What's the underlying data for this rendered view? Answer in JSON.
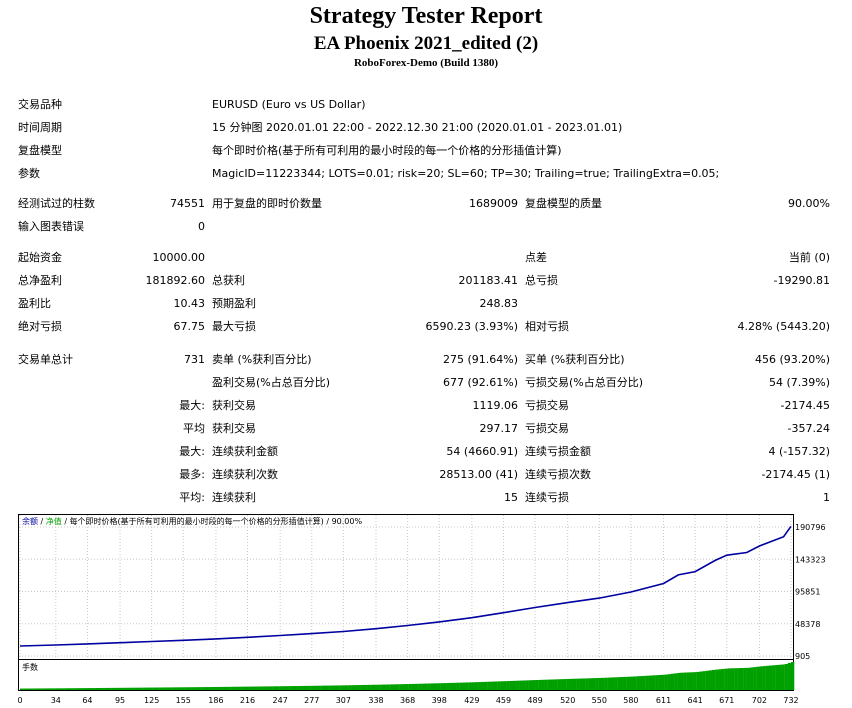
{
  "header": {
    "title": "Strategy Tester Report",
    "subtitle": "EA Phoenix 2021_edited (2)",
    "server": "RoboForex-Demo (Build 1380)"
  },
  "settings": {
    "symbol_label": "交易品种",
    "symbol_value": "EURUSD (Euro vs US Dollar)",
    "period_label": "时间周期",
    "period_value": "15 分钟图 2020.01.01 22:00 - 2022.12.30 21:00 (2020.01.01 - 2023.01.01)",
    "model_label": "复盘模型",
    "model_value": "每个即时价格(基于所有可利用的最小时段的每一个价格的分形插值计算)",
    "params_label": "参数",
    "params_value": "MagicID=11223344; LOTS=0.01; risk=20; SL=60; TP=30; Trailing=true; TrailingExtra=0.05;"
  },
  "stats": {
    "bars_label": "经测试过的柱数",
    "bars_value": "74551",
    "ticks_label": "用于复盘的即时价数量",
    "ticks_value": "1689009",
    "quality_label": "复盘模型的质量",
    "quality_value": "90.00%",
    "errors_label": "输入图表错误",
    "errors_value": "0",
    "deposit_label": "起始资金",
    "deposit_value": "10000.00",
    "spread_label": "点差",
    "spread_value": "当前 (0)",
    "net_label": "总净盈利",
    "net_value": "181892.60",
    "gross_profit_label": "总获利",
    "gross_profit_value": "201183.41",
    "gross_loss_label": "总亏损",
    "gross_loss_value": "-19290.81",
    "pf_label": "盈利比",
    "pf_value": "10.43",
    "expected_label": "预期盈利",
    "expected_value": "248.83",
    "abs_dd_label": "绝对亏损",
    "abs_dd_value": "67.75",
    "max_dd_label": "最大亏损",
    "max_dd_value": "6590.23 (3.93%)",
    "rel_dd_label": "相对亏损",
    "rel_dd_value": "4.28% (5443.20)",
    "trades_label": "交易单总计",
    "trades_value": "731",
    "short_label": "卖单 (%获利百分比)",
    "short_value": "275 (91.64%)",
    "long_label": "买单 (%获利百分比)",
    "long_value": "456 (93.20%)",
    "win_label": "盈利交易(%占总百分比)",
    "win_value": "677 (92.61%)",
    "loss_label": "亏损交易(%占总百分比)",
    "loss_value": "54 (7.39%)",
    "largest_prefix": "最大:",
    "largest_win_label": "获利交易",
    "largest_win_value": "1119.06",
    "largest_loss_label": "亏损交易",
    "largest_loss_value": "-2174.45",
    "avg_prefix": "平均",
    "avg_win_label": "获利交易",
    "avg_win_value": "297.17",
    "avg_loss_label": "亏损交易",
    "avg_loss_value": "-357.24",
    "maxcons_prefix": "最大:",
    "maxcons_win_label": "连续获利金额",
    "maxcons_win_value": "54 (4660.91)",
    "maxcons_loss_label": "连续亏损金额",
    "maxcons_loss_value": "4 (-157.32)",
    "maxamt_prefix": "最多:",
    "maxamt_win_label": "连续获利次数",
    "maxamt_win_value": "28513.00 (41)",
    "maxamt_loss_label": "连续亏损次数",
    "maxamt_loss_value": "-2174.45 (1)",
    "avgcons_prefix": "平均:",
    "avgcons_win_label": "连续获利",
    "avgcons_win_value": "15",
    "avgcons_loss_label": "连续亏损",
    "avgcons_loss_value": "1"
  },
  "chart_data": {
    "type": "line",
    "legend": {
      "balance": "余额",
      "sep1": " / ",
      "equity": "净值",
      "rest": " / 每个即时价格(基于所有可利用的最小时段的每一个价格的分形插值计算) / 90.00%"
    },
    "colors": {
      "balance": "#0000a0",
      "equity": "#00a000",
      "volume": "#00a000"
    },
    "y_ticks": [
      "190796",
      "143323",
      "95851",
      "48378",
      "905"
    ],
    "ylim": [
      905,
      190796
    ],
    "x_ticks": [
      "0",
      "34",
      "64",
      "95",
      "125",
      "155",
      "186",
      "216",
      "247",
      "277",
      "307",
      "338",
      "368",
      "398",
      "429",
      "459",
      "489",
      "520",
      "550",
      "580",
      "611",
      "641",
      "671",
      "702",
      "732"
    ],
    "xlim": [
      0,
      732
    ],
    "volume_label": "手数",
    "balance_series": [
      {
        "x": 0,
        "y": 10000
      },
      {
        "x": 34,
        "y": 11500
      },
      {
        "x": 64,
        "y": 13200
      },
      {
        "x": 95,
        "y": 15000
      },
      {
        "x": 125,
        "y": 16900
      },
      {
        "x": 155,
        "y": 18700
      },
      {
        "x": 186,
        "y": 20800
      },
      {
        "x": 216,
        "y": 23300
      },
      {
        "x": 247,
        "y": 25900
      },
      {
        "x": 277,
        "y": 28800
      },
      {
        "x": 307,
        "y": 32100
      },
      {
        "x": 338,
        "y": 36300
      },
      {
        "x": 368,
        "y": 41100
      },
      {
        "x": 398,
        "y": 46600
      },
      {
        "x": 429,
        "y": 53000
      },
      {
        "x": 459,
        "y": 60600
      },
      {
        "x": 489,
        "y": 68500
      },
      {
        "x": 520,
        "y": 76000
      },
      {
        "x": 550,
        "y": 82800
      },
      {
        "x": 580,
        "y": 92000
      },
      {
        "x": 611,
        "y": 105000
      },
      {
        "x": 625,
        "y": 118000
      },
      {
        "x": 641,
        "y": 123000
      },
      {
        "x": 660,
        "y": 140000
      },
      {
        "x": 671,
        "y": 148000
      },
      {
        "x": 690,
        "y": 152000
      },
      {
        "x": 702,
        "y": 162000
      },
      {
        "x": 715,
        "y": 170000
      },
      {
        "x": 725,
        "y": 176000
      },
      {
        "x": 732,
        "y": 191892
      }
    ]
  }
}
